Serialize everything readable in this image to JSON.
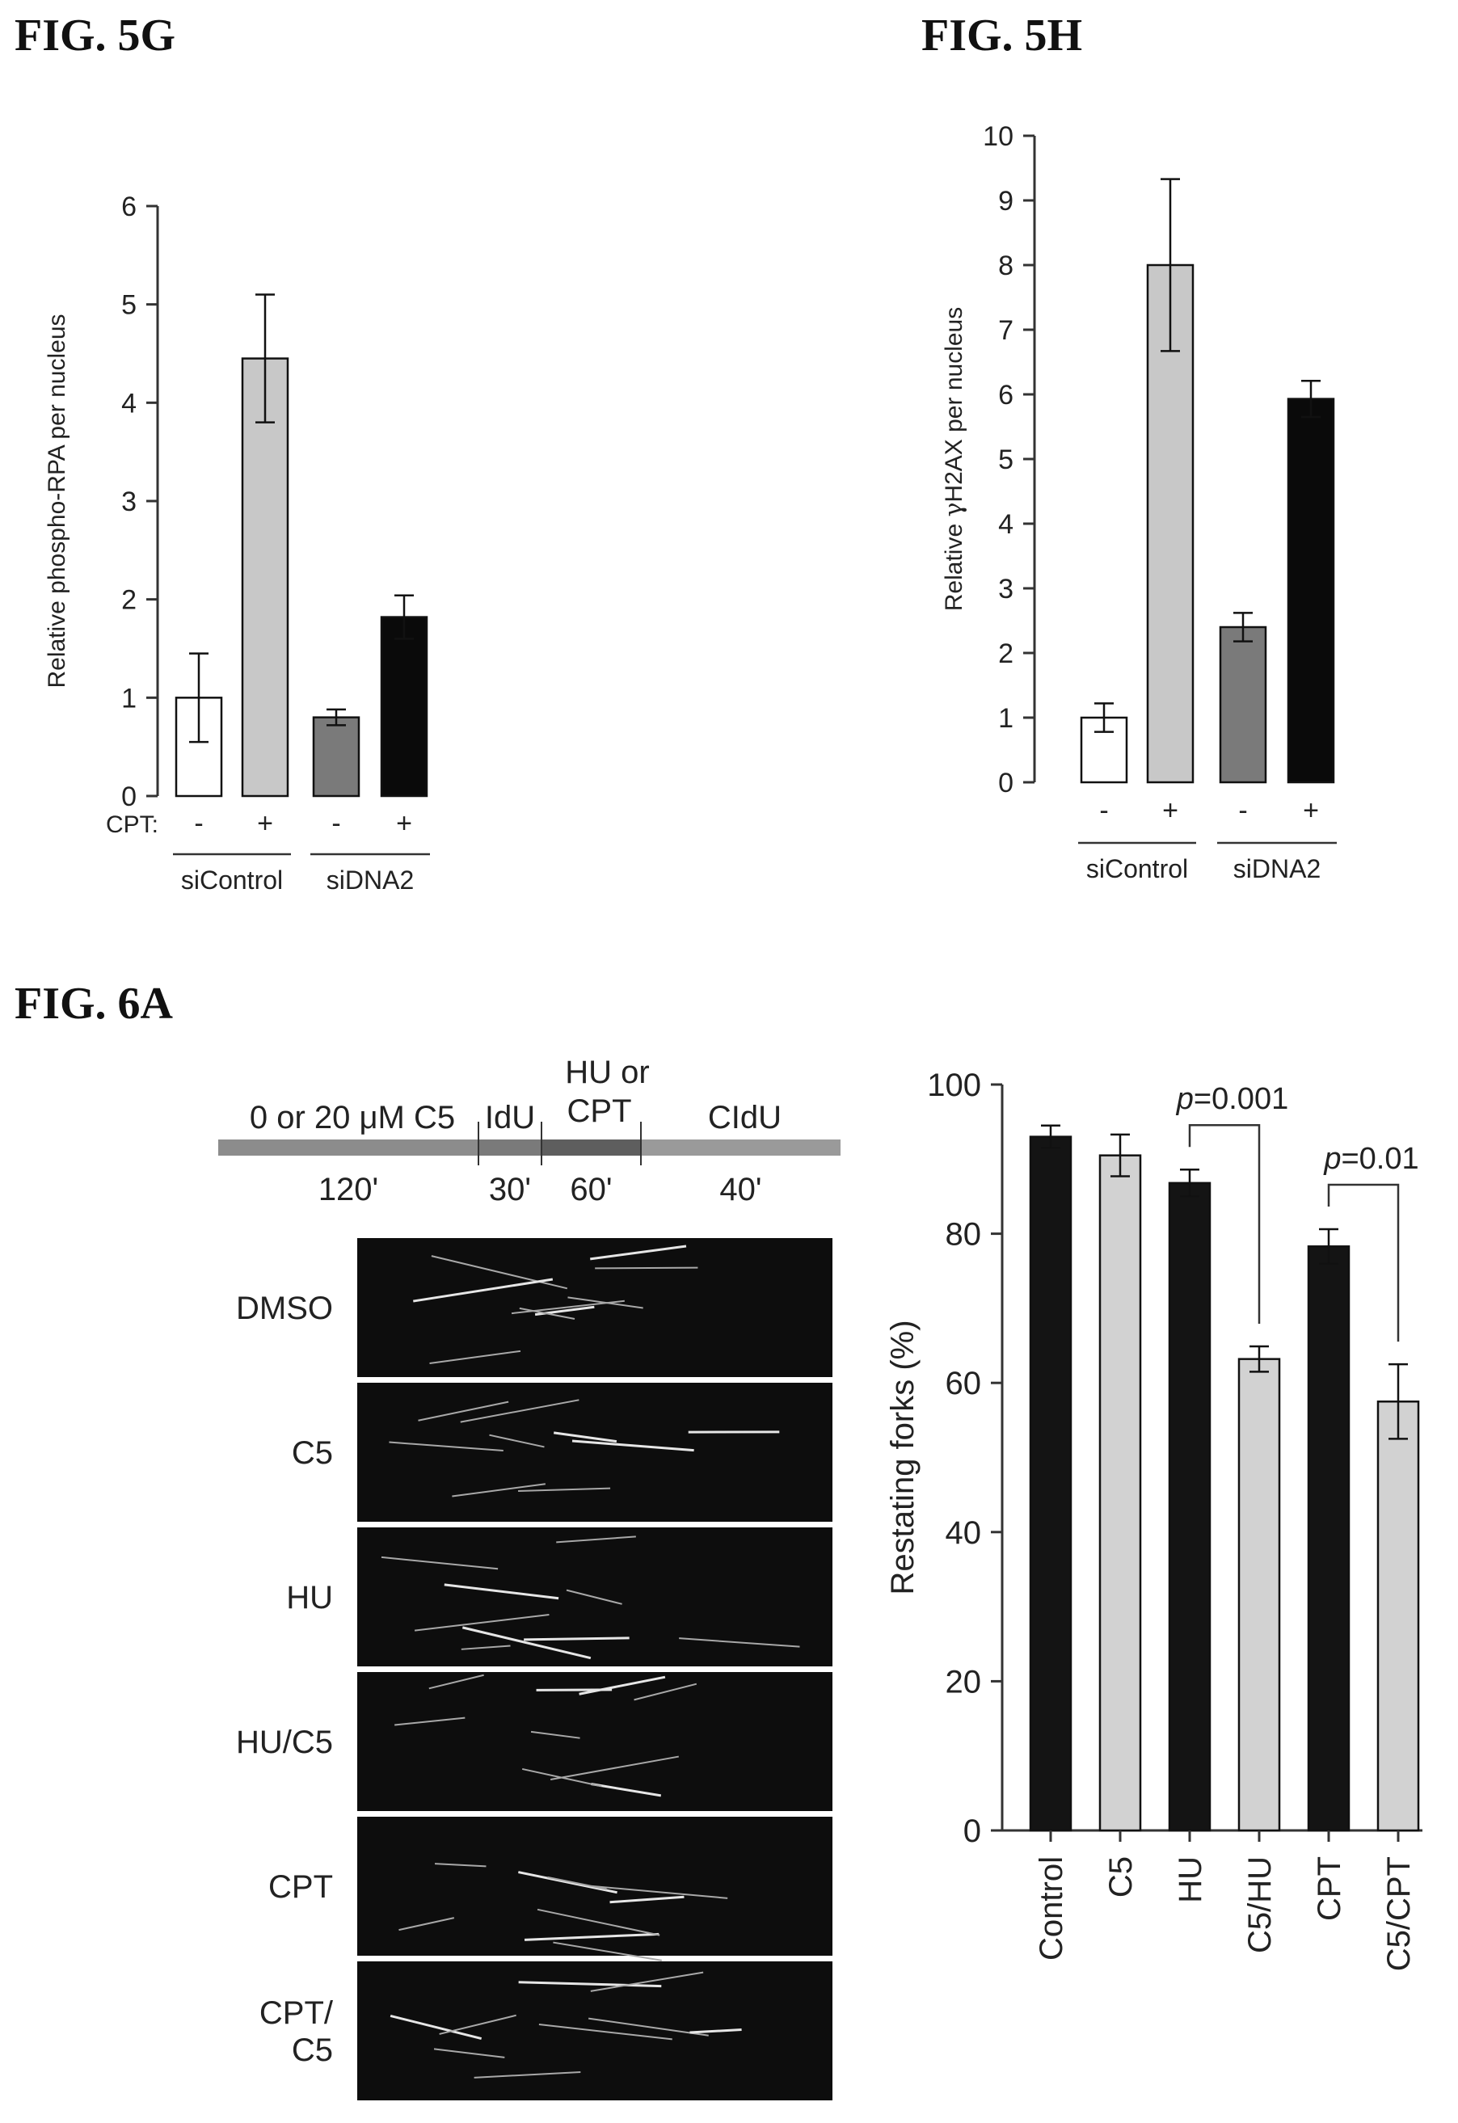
{
  "figures": {
    "fig5g": "FIG. 5G",
    "fig5h": "FIG. 5H",
    "fig6a": "FIG. 6A"
  },
  "timeline": {
    "segments": [
      {
        "label": "0 or 20 μM C5",
        "duration": "120'",
        "color": "#8c8c8c"
      },
      {
        "label": "IdU",
        "duration": "30'",
        "color": "#7a7a7a"
      },
      {
        "label": "HU or CPT",
        "duration": "60'",
        "color": "#5e5e5e"
      },
      {
        "label": "CIdU",
        "duration": "40'",
        "color": "#9a9a9a"
      }
    ]
  },
  "micrographs": {
    "panels": [
      "DMSO",
      "C5",
      "HU",
      "HU/C5",
      "CPT",
      "CPT/\nC5"
    ]
  },
  "chart_data": [
    {
      "id": "fig5g",
      "type": "bar",
      "title": "",
      "ylabel": "Relative phospho-RPA  per nucleus",
      "ylim": [
        0,
        6
      ],
      "yticks": [
        0,
        1,
        2,
        3,
        4,
        5,
        6
      ],
      "treatment_label": "CPT:",
      "categories": [
        "-",
        "+",
        "-",
        "+"
      ],
      "groups": [
        "siControl",
        "siDNA2"
      ],
      "values": [
        1.0,
        4.45,
        0.8,
        1.82
      ],
      "errors": [
        0.45,
        0.65,
        0.08,
        0.22
      ],
      "colors": [
        "#ffffff",
        "#c8c8c8",
        "#7a7a7a",
        "#0a0a0a"
      ]
    },
    {
      "id": "fig5h",
      "type": "bar",
      "title": "",
      "ylabel": "Relative γH2AX per nucleus",
      "ylim": [
        0,
        10
      ],
      "yticks": [
        0,
        1,
        2,
        3,
        4,
        5,
        6,
        7,
        8,
        9,
        10
      ],
      "categories": [
        "-",
        "+",
        "-",
        "+"
      ],
      "groups": [
        "siControl",
        "siDNA2"
      ],
      "values": [
        1.0,
        8.0,
        2.4,
        5.93
      ],
      "errors": [
        0.22,
        1.33,
        0.22,
        0.28
      ],
      "colors": [
        "#ffffff",
        "#c8c8c8",
        "#7a7a7a",
        "#0a0a0a"
      ]
    },
    {
      "id": "fig6a",
      "type": "bar",
      "title": "",
      "ylabel": "Restating forks (%)",
      "ylim": [
        0,
        100
      ],
      "yticks": [
        0,
        20,
        40,
        60,
        80,
        100
      ],
      "categories": [
        "Control",
        "C5",
        "HU",
        "C5/HU",
        "CPT",
        "C5/CPT"
      ],
      "values": [
        93,
        90.5,
        86.8,
        63.2,
        78.3,
        57.5
      ],
      "errors": [
        1.5,
        2.8,
        1.8,
        1.7,
        2.3,
        5.0
      ],
      "colors": [
        "#141414",
        "#d2d2d2",
        "#141414",
        "#d2d2d2",
        "#141414",
        "#d2d2d2"
      ],
      "annotations": [
        {
          "text": "p=0.001",
          "from": 2,
          "to": 3
        },
        {
          "text": "p=0.01",
          "from": 4,
          "to": 5
        }
      ]
    }
  ]
}
